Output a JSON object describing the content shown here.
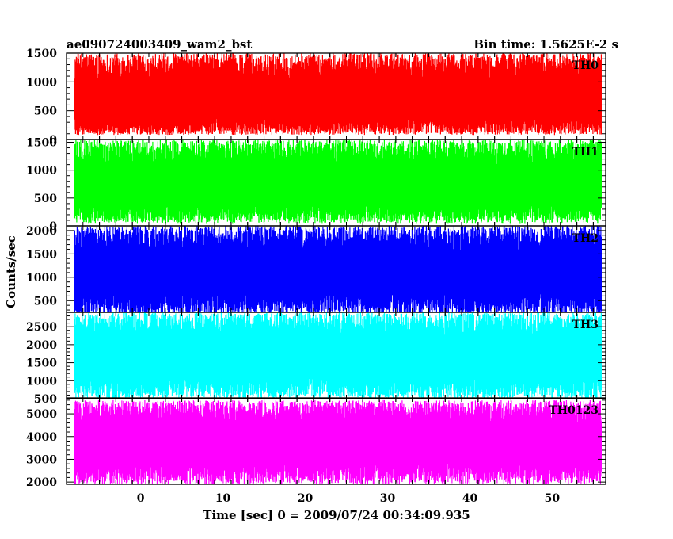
{
  "chart_data": {
    "type": "line",
    "title": "ae090724003409_wam2_bst",
    "subtitle": "Bin time: 1.5625E-2 s",
    "xlabel": "Time [sec] 0 = 2009/07/24 00:34:09.935",
    "ylabel": "Counts/sec",
    "xlim": [
      -9,
      56.5
    ],
    "x_data_range": [
      -8,
      56
    ],
    "x_ticks": [
      0,
      10,
      20,
      30,
      40,
      50
    ],
    "grid": false,
    "panels": [
      {
        "name": "TH0",
        "color": "#ff0000",
        "ylim": [
          0,
          1500
        ],
        "y_ticks": [
          0,
          500,
          1000,
          1500
        ],
        "y_tick_labels": [
          "0",
          "500",
          "1000",
          "1500"
        ],
        "mean": 620,
        "spread": [
          80,
          1500
        ]
      },
      {
        "name": "TH1",
        "color": "#00ff00",
        "ylim": [
          0,
          1550
        ],
        "y_ticks": [
          0,
          500,
          1000,
          1500
        ],
        "y_tick_labels": [
          "0",
          "500",
          "1000",
          "1500"
        ],
        "mean": 680,
        "spread": [
          50,
          1550
        ]
      },
      {
        "name": "TH2",
        "color": "#0000ff",
        "ylim": [
          250,
          2100
        ],
        "y_ticks": [
          500,
          1000,
          1500,
          2000
        ],
        "y_tick_labels": [
          "500",
          "1000",
          "1500",
          "2000"
        ],
        "mean": 1100,
        "spread": [
          200,
          2100
        ]
      },
      {
        "name": "TH3",
        "color": "#00ffff",
        "ylim": [
          500,
          2900
        ],
        "y_ticks": [
          500,
          1000,
          1500,
          2000,
          2500
        ],
        "y_tick_labels": [
          "500",
          "1000",
          "1500",
          "2000",
          "2500"
        ],
        "mean": 1650,
        "spread": [
          500,
          2900
        ]
      },
      {
        "name": "TH0123",
        "color": "#ff00ff",
        "ylim": [
          1900,
          5700
        ],
        "y_ticks": [
          2000,
          3000,
          4000,
          5000
        ],
        "y_tick_labels": [
          "2000",
          "3000",
          "4000",
          "5000"
        ],
        "mean": 3700,
        "spread": [
          1900,
          5600
        ]
      }
    ]
  }
}
